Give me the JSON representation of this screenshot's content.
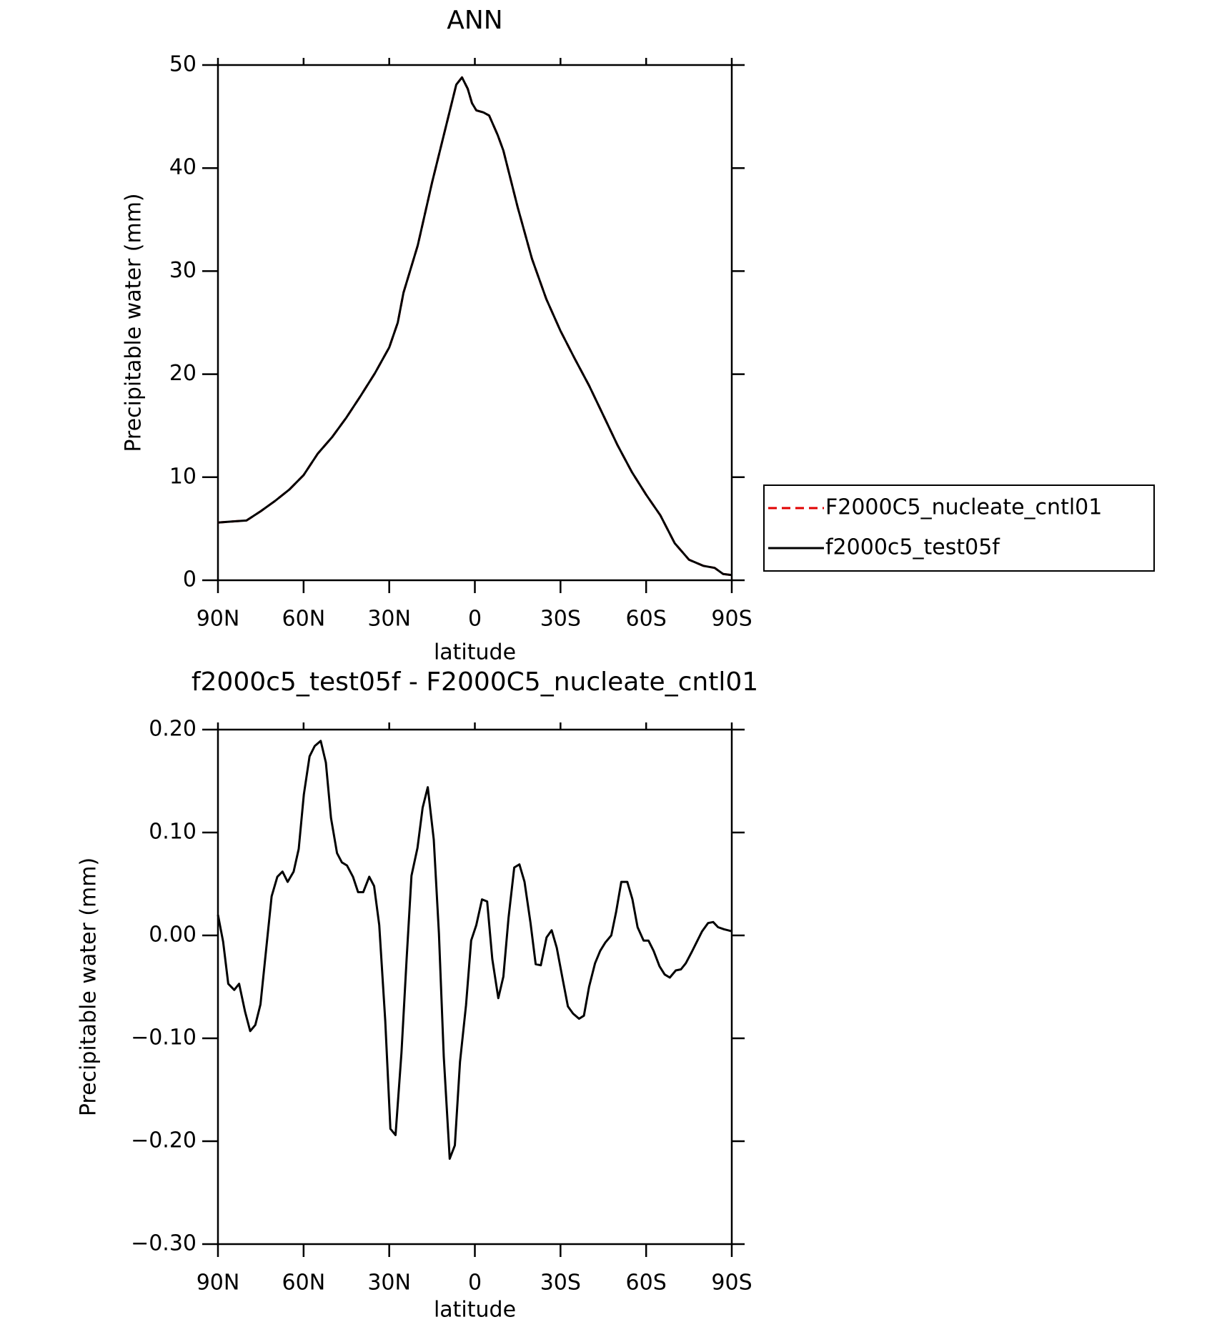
{
  "chart_data": [
    {
      "type": "line",
      "title": "ANN",
      "xlabel": "latitude",
      "ylabel": "Precipitable water (mm)",
      "x": [
        90,
        85,
        80,
        75,
        70,
        65,
        60,
        55,
        50,
        45,
        40,
        35,
        30,
        27,
        25,
        20,
        15,
        10,
        6.5,
        4.5,
        2.5,
        1,
        -0.5,
        -3,
        -5,
        -8,
        -10,
        -15,
        -20,
        -25,
        -30,
        -35,
        -40,
        -45,
        -50,
        -55,
        -60,
        -65,
        -70,
        -75,
        -80,
        -84,
        -87,
        -90
      ],
      "series": [
        {
          "name": "F2000C5_nucleate_cntl01",
          "color": "#e00000",
          "linestyle": "dashed",
          "values": [
            5.6,
            5.7,
            5.8,
            6.7,
            7.7,
            8.8,
            10.2,
            12.3,
            13.9,
            15.8,
            17.9,
            20.1,
            22.6,
            25.0,
            27.9,
            32.5,
            38.6,
            44.2,
            48.1,
            48.8,
            47.7,
            46.3,
            45.6,
            45.4,
            45.1,
            43.2,
            41.7,
            36.2,
            31.2,
            27.3,
            24.2,
            21.5,
            18.9,
            16.0,
            13.1,
            10.5,
            8.3,
            6.3,
            3.6,
            2.0,
            1.4,
            1.2,
            0.6,
            0.5
          ]
        },
        {
          "name": "f2000c5_test05f",
          "color": "#000000",
          "linestyle": "solid",
          "values": [
            5.6,
            5.7,
            5.8,
            6.7,
            7.7,
            8.8,
            10.2,
            12.3,
            13.9,
            15.8,
            17.9,
            20.1,
            22.6,
            25.0,
            27.9,
            32.5,
            38.6,
            44.2,
            48.1,
            48.8,
            47.7,
            46.3,
            45.6,
            45.4,
            45.1,
            43.2,
            41.7,
            36.2,
            31.2,
            27.3,
            24.2,
            21.5,
            18.9,
            16.0,
            13.1,
            10.5,
            8.3,
            6.3,
            3.6,
            2.0,
            1.4,
            1.2,
            0.6,
            0.5
          ]
        }
      ],
      "xlim": [
        90,
        -90
      ],
      "xticks": [
        {
          "value": 90,
          "label": "90N"
        },
        {
          "value": 60,
          "label": "60N"
        },
        {
          "value": 30,
          "label": "30N"
        },
        0,
        {
          "value": -30,
          "label": "30S"
        },
        {
          "value": -60,
          "label": "60S"
        },
        {
          "value": -90,
          "label": "90S"
        }
      ],
      "ylim": [
        0,
        50
      ],
      "yticks": [
        0,
        10,
        20,
        30,
        40,
        50
      ],
      "legend": "right"
    },
    {
      "type": "line",
      "title": "f2000c5_test05f - F2000C5_nucleate_cntl01",
      "xlabel": "latitude",
      "ylabel": "Precipitable water (mm)",
      "x": [
        90,
        88.2,
        86.4,
        84.3,
        82.6,
        80.5,
        78.7,
        76.9,
        75.1,
        71.2,
        69.2,
        67.4,
        65.6,
        63.5,
        61.7,
        59.9,
        57.9,
        56.1,
        54.0,
        52.2,
        50.4,
        48.3,
        46.6,
        44.8,
        42.7,
        40.9,
        39.1,
        37.0,
        35.3,
        33.5,
        31.4,
        29.6,
        27.8,
        25.7,
        23.9,
        22.2,
        20.1,
        18.3,
        16.5,
        14.4,
        12.6,
        10.9,
        8.8,
        7.0,
        5.2,
        3.1,
        1.3,
        -0.5,
        -2.5,
        -4.3,
        -6.1,
        -8.2,
        -10.0,
        -11.8,
        -13.8,
        -15.6,
        -17.4,
        -19.5,
        -21.3,
        -23.1,
        -25.1,
        -26.9,
        -28.7,
        -30.8,
        -32.6,
        -34.4,
        -36.5,
        -38.2,
        -40.0,
        -42.1,
        -43.9,
        -45.7,
        -47.8,
        -49.5,
        -51.3,
        -53.4,
        -55.2,
        -57.0,
        -59.1,
        -60.8,
        -62.6,
        -64.7,
        -66.5,
        -68.3,
        -70.4,
        -72.2,
        -73.9,
        -76.0,
        -77.8,
        -79.6,
        -81.7,
        -83.5,
        -85.2,
        -87.3,
        -90
      ],
      "series": [
        {
          "name": "f2000c5_test05f - F2000C5_nucleate_cntl01",
          "color": "#000000",
          "linestyle": "solid",
          "values": [
            0.02,
            -0.006,
            -0.047,
            -0.053,
            -0.047,
            -0.074,
            -0.093,
            -0.087,
            -0.067,
            0.038,
            0.057,
            0.062,
            0.052,
            0.062,
            0.084,
            0.137,
            0.174,
            0.184,
            0.189,
            0.168,
            0.114,
            0.08,
            0.071,
            0.068,
            0.057,
            0.042,
            0.042,
            0.057,
            0.048,
            0.01,
            -0.083,
            -0.188,
            -0.194,
            -0.114,
            -0.023,
            0.058,
            0.085,
            0.124,
            0.144,
            0.093,
            0.002,
            -0.118,
            -0.217,
            -0.204,
            -0.123,
            -0.068,
            -0.005,
            0.01,
            0.035,
            0.033,
            -0.023,
            -0.061,
            -0.04,
            0.017,
            0.066,
            0.069,
            0.052,
            0.012,
            -0.028,
            -0.029,
            -0.002,
            0.005,
            -0.012,
            -0.043,
            -0.069,
            -0.076,
            -0.081,
            -0.078,
            -0.05,
            -0.027,
            -0.015,
            -0.007,
            0.0,
            0.023,
            0.052,
            0.052,
            0.035,
            0.008,
            -0.005,
            -0.005,
            -0.015,
            -0.03,
            -0.038,
            -0.041,
            -0.034,
            -0.033,
            -0.027,
            -0.016,
            -0.006,
            0.004,
            0.012,
            0.013,
            0.008,
            0.006,
            0.004
          ]
        }
      ],
      "xlim": [
        90,
        -90
      ],
      "xticks": [
        {
          "value": 90,
          "label": "90N"
        },
        {
          "value": 60,
          "label": "60N"
        },
        {
          "value": 30,
          "label": "30N"
        },
        0,
        {
          "value": -30,
          "label": "30S"
        },
        {
          "value": -60,
          "label": "60S"
        },
        {
          "value": -90,
          "label": "90S"
        }
      ],
      "ylim": [
        -0.3,
        0.2
      ],
      "yticks": [
        {
          "value": -0.3,
          "label": "−0.30"
        },
        {
          "value": -0.2,
          "label": "−0.20"
        },
        {
          "value": -0.1,
          "label": "−0.10"
        },
        {
          "value": 0,
          "label": "0.00"
        },
        {
          "value": 0.1,
          "label": "0.10"
        },
        {
          "value": 0.2,
          "label": "0.20"
        }
      ]
    }
  ]
}
